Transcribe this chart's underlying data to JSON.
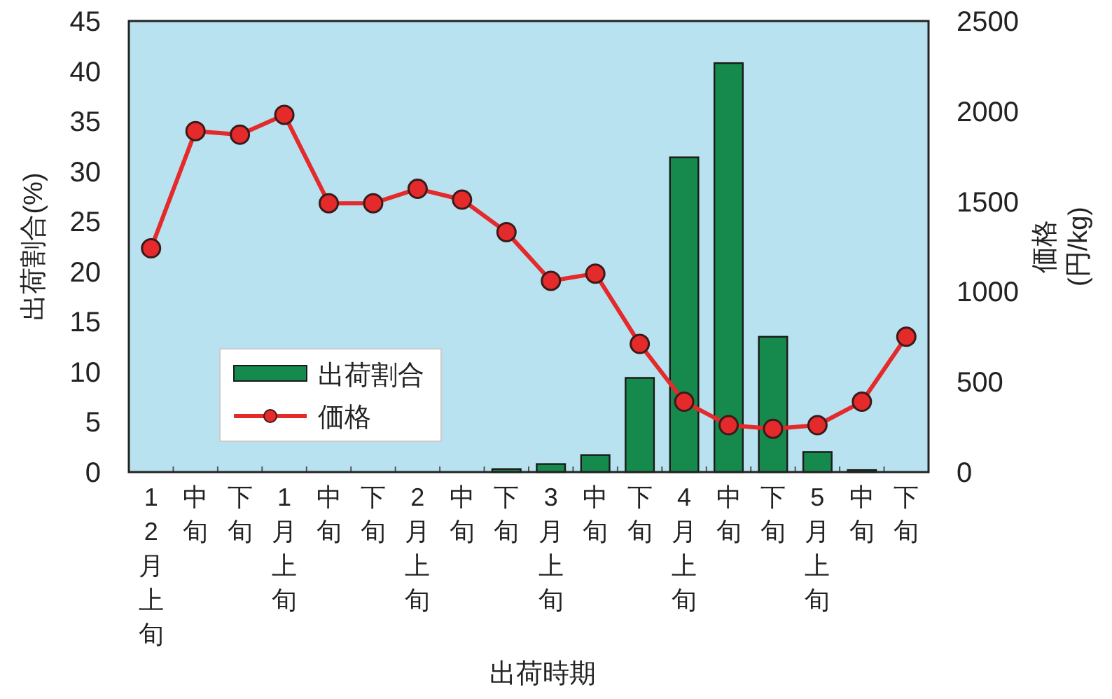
{
  "chart_data": {
    "type": "bar",
    "xlabel": "出荷時期",
    "ylabel": "出荷割合(%)",
    "y2label": "価格\n(円/kg)",
    "categories": [
      "12月上旬",
      "中旬",
      "下旬",
      "1月上旬",
      "中旬",
      "下旬",
      "2月上旬",
      "中旬",
      "下旬",
      "3月上旬",
      "中旬",
      "下旬",
      "4月上旬",
      "中旬",
      "下旬",
      "5月上旬",
      "中旬",
      "下旬"
    ],
    "series": [
      {
        "name": "出荷割合",
        "color": "#168a4c",
        "values": [
          0,
          0,
          0,
          0,
          0,
          0,
          0,
          0,
          0.3,
          0.8,
          1.7,
          9.4,
          31.4,
          40.8,
          13.5,
          2.0,
          0.2,
          0
        ]
      },
      {
        "name": "価格",
        "type": "line",
        "axis": "y2",
        "color": "#e42a2a",
        "marker": "circle",
        "values": [
          1240,
          1890,
          1870,
          1980,
          1490,
          1490,
          1570,
          1510,
          1330,
          1060,
          1100,
          710,
          390,
          260,
          240,
          260,
          390,
          750
        ]
      }
    ],
    "ylim": [
      0,
      45
    ],
    "yticks": [
      0,
      5,
      10,
      15,
      20,
      25,
      30,
      35,
      40,
      45
    ],
    "y2lim": [
      0,
      2500
    ],
    "y2ticks": [
      0,
      500,
      1000,
      1500,
      2000,
      2500
    ],
    "grid": false,
    "legend": "bottom left"
  }
}
